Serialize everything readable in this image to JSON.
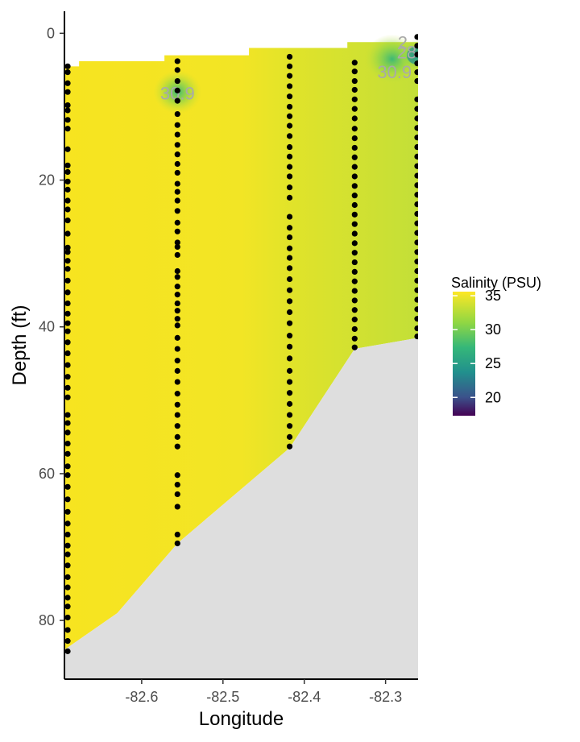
{
  "chart_data": {
    "type": "heatmap",
    "xlabel": "Longitude",
    "ylabel": "Depth (ft)",
    "xlim": [
      -82.695,
      -82.26
    ],
    "ylim": [
      88,
      -3
    ],
    "y_reversed": true,
    "xticks": [
      -82.6,
      -82.5,
      -82.4,
      -82.3
    ],
    "xtick_labels": [
      "-82.6",
      "-82.5",
      "-82.4",
      "-82.3"
    ],
    "yticks": [
      0,
      20,
      40,
      60,
      80
    ],
    "ytick_labels": [
      "0",
      "20",
      "40",
      "60",
      "80"
    ],
    "legend": {
      "title": "Salinity (PSU)",
      "placement": "right",
      "limits": [
        17.3,
        35.6
      ],
      "breaks": [
        35,
        30,
        25,
        20
      ],
      "break_labels": [
        "35",
        "30",
        "25",
        "20"
      ]
    },
    "surface_profile": [
      [
        -82.695,
        4.5
      ],
      [
        -82.677,
        4.5
      ],
      [
        -82.677,
        3.8
      ],
      [
        -82.572,
        3.8
      ],
      [
        -82.572,
        3.0
      ],
      [
        -82.468,
        3.0
      ],
      [
        -82.468,
        2.0
      ],
      [
        -82.347,
        2.0
      ],
      [
        -82.347,
        1.2
      ],
      [
        -82.26,
        1.2
      ]
    ],
    "bottom_profile": [
      [
        -82.695,
        84.0
      ],
      [
        -82.63,
        79.0
      ],
      [
        -82.556,
        69.5
      ],
      [
        -82.418,
        56.5
      ],
      [
        -82.338,
        43.0
      ],
      [
        -82.26,
        41.5
      ]
    ],
    "field_regions": [
      {
        "x": [
          -82.695,
          -82.4
        ],
        "y": [
          0,
          90
        ],
        "value": 35.2
      },
      {
        "x": [
          -82.4,
          -82.34
        ],
        "y": [
          0,
          90
        ],
        "value": 34.3
      },
      {
        "x": [
          -82.34,
          -82.26
        ],
        "y": [
          0,
          90
        ],
        "value": 32.6
      }
    ],
    "field_anomalies": [
      {
        "x": -82.556,
        "y": 8.0,
        "value": 31.0
      },
      {
        "x": -82.292,
        "y": 3.5,
        "value": 27.5
      },
      {
        "x": -82.262,
        "y": 3.0,
        "value": 24.0
      }
    ],
    "contour_labels": [
      {
        "text": "30.9",
        "x": -82.556,
        "y": 8.2
      },
      {
        "text": "30.9",
        "x": -82.289,
        "y": 5.3
      },
      {
        "text": "28",
        "x": -82.274,
        "y": 2.6
      },
      {
        "text": "2",
        "x": -82.279,
        "y": 1.3
      }
    ],
    "stations": [
      {
        "x": -82.691,
        "depths": [
          4.5,
          5.3,
          6.8,
          8.0,
          9.8,
          10.5,
          11.8,
          13.0,
          15.8,
          18.0,
          18.9,
          20.2,
          21.3,
          22.8,
          24.0,
          25.5,
          27.3,
          29.2,
          29.8,
          31.0,
          32.1,
          33.7,
          35.3,
          36.8,
          38.2,
          39.5,
          40.6,
          42.1,
          43.6,
          45.2,
          46.8,
          48.3,
          49.6,
          52.0,
          53.1,
          54.4,
          55.9,
          57.3,
          59.0,
          60.2,
          61.8,
          63.5,
          65.2,
          66.8,
          68.3,
          69.8,
          71.0,
          72.5,
          74.1,
          75.5,
          76.9,
          78.1,
          79.6,
          81.3,
          82.8,
          84.2
        ]
      },
      {
        "x": -82.556,
        "depths": [
          3.8,
          5.0,
          6.5,
          7.8,
          9.2,
          11.0,
          12.5,
          13.8,
          15.2,
          16.5,
          17.8,
          19.0,
          20.5,
          21.6,
          22.8,
          24.2,
          25.8,
          27.0,
          28.5,
          29.1,
          30.2,
          32.4,
          33.2,
          34.5,
          35.6,
          36.8,
          37.8,
          38.9,
          39.8,
          41.5,
          43.0,
          44.6,
          46.0,
          47.5,
          49.1,
          50.6,
          52.0,
          53.5,
          55.0,
          56.3,
          60.2,
          61.5,
          62.8,
          64.5,
          68.3,
          69.5
        ]
      },
      {
        "x": -82.418,
        "depths": [
          3.2,
          4.5,
          5.8,
          7.2,
          8.6,
          10.0,
          11.3,
          12.6,
          14.0,
          15.5,
          16.8,
          18.2,
          19.5,
          21.0,
          22.4,
          25.0,
          26.5,
          27.8,
          29.3,
          30.6,
          32.0,
          33.5,
          35.0,
          36.5,
          38.0,
          39.5,
          41.2,
          42.7,
          44.3,
          46.0,
          47.5,
          49.0,
          50.5,
          52.0,
          53.5,
          55.0,
          56.3
        ]
      },
      {
        "x": -82.338,
        "depths": [
          4.0,
          5.2,
          6.5,
          7.7,
          9.0,
          10.3,
          11.6,
          13.0,
          14.3,
          15.6,
          16.9,
          18.2,
          19.5,
          20.8,
          22.1,
          23.4,
          24.7,
          26.0,
          27.3,
          28.6,
          29.9,
          31.2,
          32.5,
          33.8,
          35.1,
          36.4,
          37.7,
          39.0,
          40.3,
          41.6,
          42.8
        ]
      },
      {
        "x": -82.261,
        "depths": [
          0.5,
          1.7,
          2.9,
          4.1,
          5.3,
          6.5,
          9.0,
          10.3,
          11.6,
          12.9,
          14.2,
          15.5,
          16.8,
          18.1,
          19.4,
          20.7,
          22.0,
          23.3,
          24.6,
          25.9,
          27.2,
          28.5,
          29.8,
          31.1,
          32.4,
          33.7,
          35.0,
          36.3,
          37.6,
          38.9,
          40.2,
          41.3
        ]
      }
    ]
  }
}
